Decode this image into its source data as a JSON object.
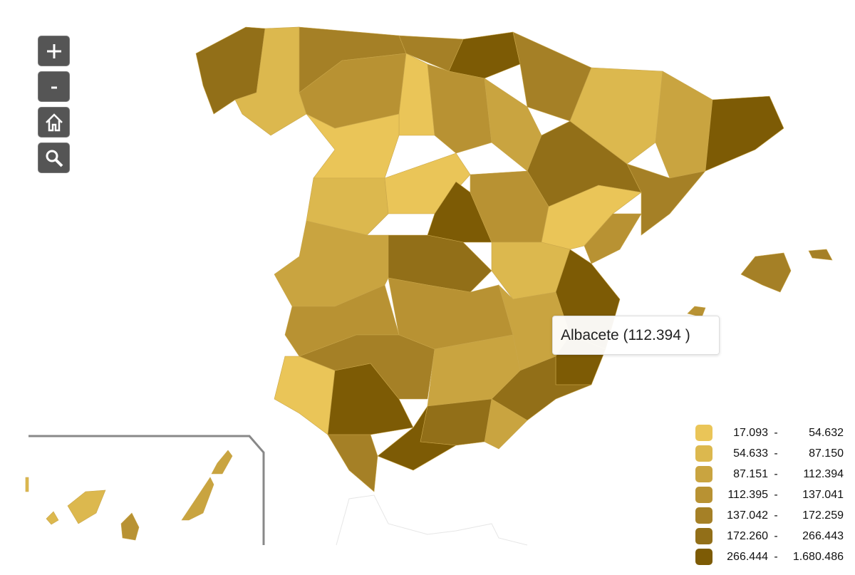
{
  "controls": [
    {
      "name": "zoom-in-button",
      "icon": "plus-icon"
    },
    {
      "name": "zoom-out-button",
      "icon": "minus-icon"
    },
    {
      "name": "home-button",
      "icon": "home-icon"
    },
    {
      "name": "search-button",
      "icon": "magnifier-icon"
    }
  ],
  "tooltip": {
    "text": "Albacete (112.394 )"
  },
  "legend": [
    {
      "from": "17.093",
      "to": "54.632",
      "color": "#EAC558"
    },
    {
      "from": "54.633",
      "to": "87.150",
      "color": "#DCB84E"
    },
    {
      "from": "87.151",
      "to": "112.394",
      "color": "#C9A440"
    },
    {
      "from": "112.395",
      "to": "137.041",
      "color": "#B89233"
    },
    {
      "from": "137.042",
      "to": "172.259",
      "color": "#A58026"
    },
    {
      "from": "172.260",
      "to": "266.443",
      "color": "#926F18"
    },
    {
      "from": "266.444",
      "to": "1.680.486",
      "color": "#7D5B05"
    }
  ]
}
